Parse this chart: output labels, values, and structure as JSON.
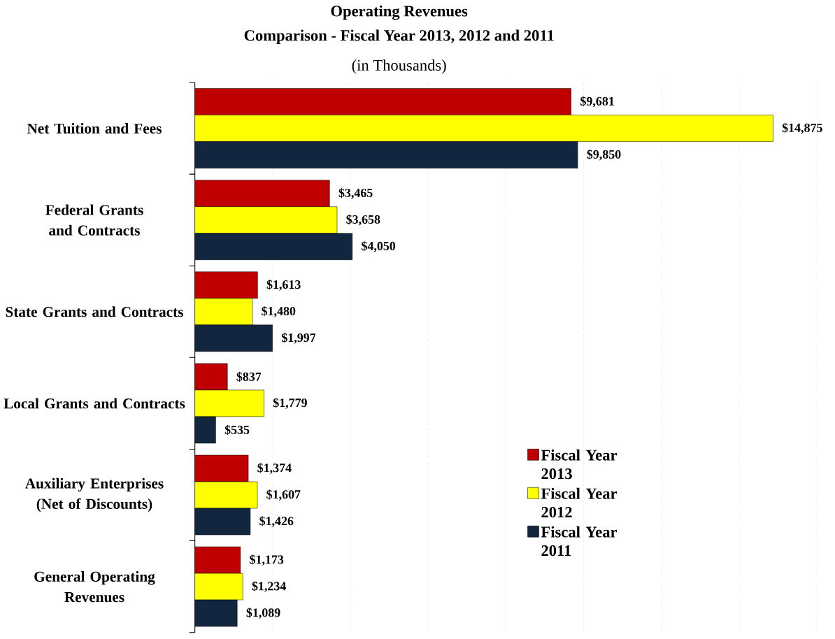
{
  "chart_data": {
    "type": "bar",
    "orientation": "horizontal",
    "title": "Operating Revenues",
    "subtitle": "Comparison - Fiscal Year 2013, 2012 and 2011",
    "annotations": [
      "(in Thousands)"
    ],
    "categories": [
      "Net Tuition and Fees",
      "Federal Grants and Contracts",
      "State Grants and Contracts",
      "Local Grants and Contracts",
      "Auxiliary Enterprises (Net of Discounts)",
      "General Operating Revenues"
    ],
    "series": [
      {
        "name": "Fiscal Year 2013",
        "color": "#c00000",
        "values": [
          9681,
          3465,
          1613,
          837,
          1374,
          1173
        ],
        "value_labels": [
          "$9,681",
          "$3,465",
          "$1,613",
          "$837",
          "$1,374",
          "$1,173"
        ]
      },
      {
        "name": "Fiscal Year 2012",
        "color": "#ffff00",
        "values": [
          14875,
          3658,
          1480,
          1779,
          1607,
          1234
        ],
        "value_labels": [
          "$14,875",
          "$3,658",
          "$1,480",
          "$1,779",
          "$1,607",
          "$1,234"
        ]
      },
      {
        "name": "Fiscal Year 2011",
        "color": "#13263f",
        "values": [
          9850,
          4050,
          1997,
          535,
          1426,
          1089
        ],
        "value_labels": [
          "$9,850",
          "$4,050",
          "$1,997",
          "$535",
          "$1,426",
          "$1,089"
        ]
      }
    ],
    "xlim": [
      0,
      16000
    ],
    "xticks": [
      {
        "value": 0,
        "label": null
      },
      {
        "value": 2000,
        "label": null
      },
      {
        "value": 4000,
        "label": null
      },
      {
        "value": 6000,
        "label": null
      },
      {
        "value": 8000,
        "label": null
      },
      {
        "value": 10000,
        "label": null
      },
      {
        "value": 12000,
        "label": null
      },
      {
        "value": 14000,
        "label": null
      },
      {
        "value": 16000,
        "label": null
      }
    ],
    "grid": "x",
    "legend": "bottom right"
  }
}
